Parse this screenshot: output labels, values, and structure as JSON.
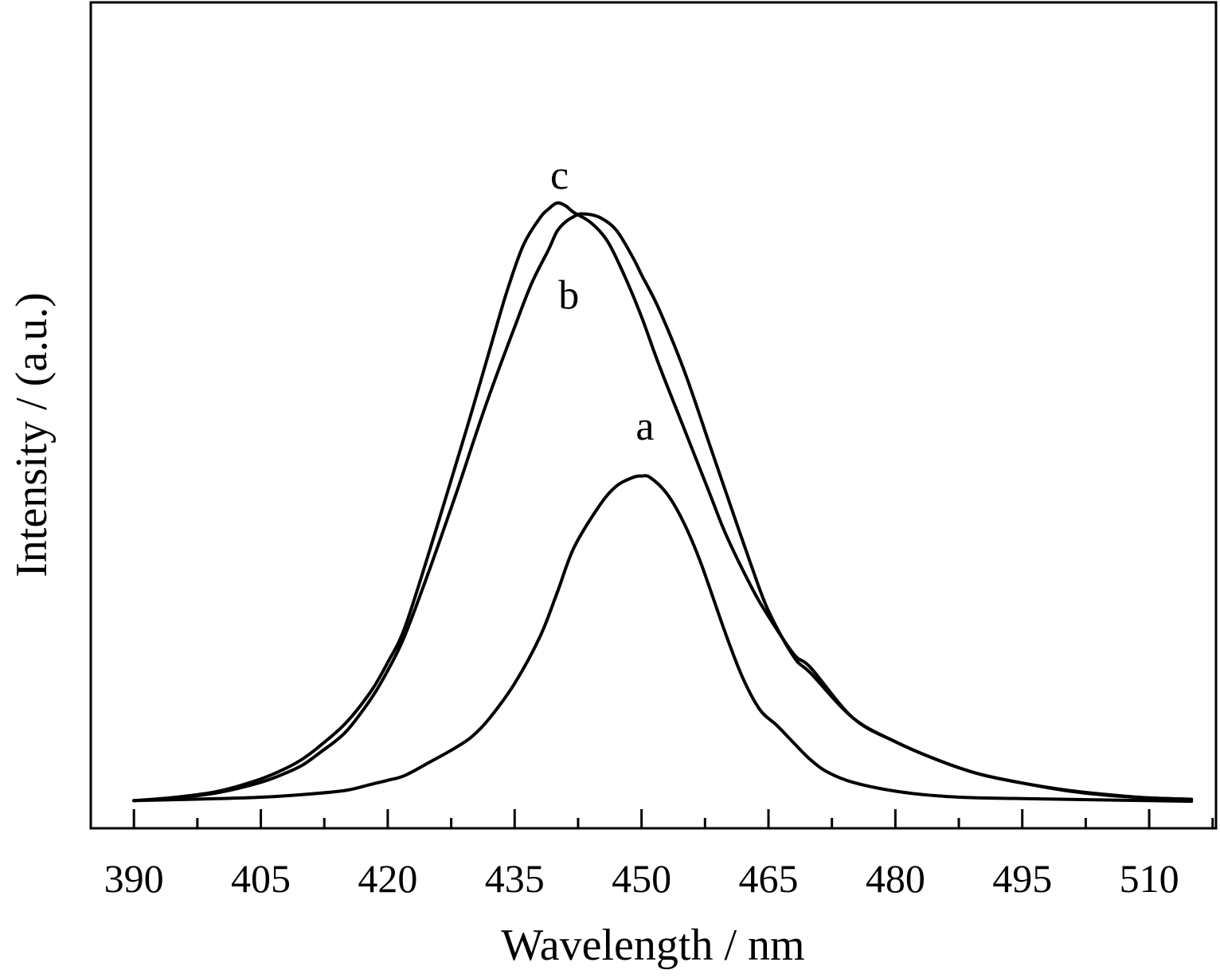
{
  "colors": {
    "line": "#000000",
    "background": "#ffffff"
  },
  "chart_data": {
    "type": "line",
    "title": "",
    "xlabel": "Wavelength / nm",
    "ylabel": "Intensity / (a.u.)",
    "xlim": [
      384.9,
      517.9
    ],
    "ylim": [
      0,
      1.18
    ],
    "x_ticks": [
      390,
      405,
      420,
      435,
      450,
      465,
      480,
      495,
      510
    ],
    "x_minor_ticks": [
      397.5,
      412.5,
      427.5,
      442.5,
      457.5,
      472.5,
      487.5,
      502.5,
      517.5
    ],
    "y_ticks_visible": false,
    "grid": false,
    "legend": "none",
    "series": [
      {
        "name": "a",
        "x": [
          390,
          400,
          405,
          410,
          415,
          418,
          420,
          422,
          425,
          428,
          430,
          432,
          435,
          438,
          440,
          442,
          445,
          447,
          449,
          450,
          451,
          453,
          455,
          457,
          460,
          462,
          464,
          466,
          468,
          470,
          472,
          475,
          480,
          485,
          490,
          500,
          510,
          515
        ],
        "y": [
          0.002,
          0.005,
          0.007,
          0.011,
          0.017,
          0.026,
          0.032,
          0.039,
          0.059,
          0.08,
          0.097,
          0.123,
          0.175,
          0.244,
          0.308,
          0.375,
          0.437,
          0.466,
          0.479,
          0.481,
          0.479,
          0.455,
          0.412,
          0.353,
          0.246,
          0.182,
          0.136,
          0.113,
          0.087,
          0.062,
          0.044,
          0.029,
          0.016,
          0.009,
          0.006,
          0.004,
          0.002,
          0.001
        ]
      },
      {
        "name": "b",
        "x": [
          390,
          395,
          400,
          405,
          408,
          410,
          412,
          415,
          418,
          420,
          422,
          425,
          428,
          430,
          432,
          435,
          437,
          439,
          440,
          441,
          442,
          443,
          445,
          447,
          449,
          450,
          452,
          455,
          458,
          460,
          463,
          465,
          468,
          470,
          475,
          480,
          485,
          490,
          495,
          500,
          505,
          510,
          515
        ],
        "y": [
          0.002,
          0.006,
          0.014,
          0.029,
          0.043,
          0.055,
          0.073,
          0.103,
          0.152,
          0.194,
          0.245,
          0.345,
          0.452,
          0.527,
          0.6,
          0.701,
          0.765,
          0.815,
          0.842,
          0.856,
          0.864,
          0.868,
          0.863,
          0.844,
          0.803,
          0.778,
          0.729,
          0.638,
          0.529,
          0.456,
          0.348,
          0.282,
          0.214,
          0.19,
          0.124,
          0.089,
          0.062,
          0.041,
          0.028,
          0.017,
          0.01,
          0.006,
          0.004
        ]
      },
      {
        "name": "c",
        "x": [
          390,
          395,
          400,
          405,
          408,
          410,
          412,
          415,
          418,
          420,
          422,
          425,
          428,
          430,
          432,
          434,
          436,
          438,
          439,
          440,
          441,
          442,
          444,
          446,
          448,
          450,
          452,
          455,
          458,
          460,
          463,
          465,
          468,
          470,
          475,
          480,
          485,
          490,
          495,
          500,
          505,
          510,
          515
        ],
        "y": [
          0.002,
          0.007,
          0.016,
          0.034,
          0.05,
          0.064,
          0.083,
          0.116,
          0.163,
          0.206,
          0.257,
          0.373,
          0.496,
          0.579,
          0.665,
          0.75,
          0.821,
          0.862,
          0.875,
          0.884,
          0.88,
          0.87,
          0.855,
          0.827,
          0.776,
          0.716,
          0.647,
          0.552,
          0.457,
          0.394,
          0.317,
          0.274,
          0.218,
          0.198,
          0.124,
          0.089,
          0.062,
          0.041,
          0.028,
          0.018,
          0.011,
          0.006,
          0.004
        ]
      }
    ],
    "annotations": [
      {
        "text": "a",
        "series": "a",
        "x": 450.4,
        "y": 0.535
      },
      {
        "text": "b",
        "series": "b",
        "x": 441.4,
        "y": 0.728
      },
      {
        "text": "c",
        "series": "c",
        "x": 440.3,
        "y": 0.905
      }
    ]
  }
}
